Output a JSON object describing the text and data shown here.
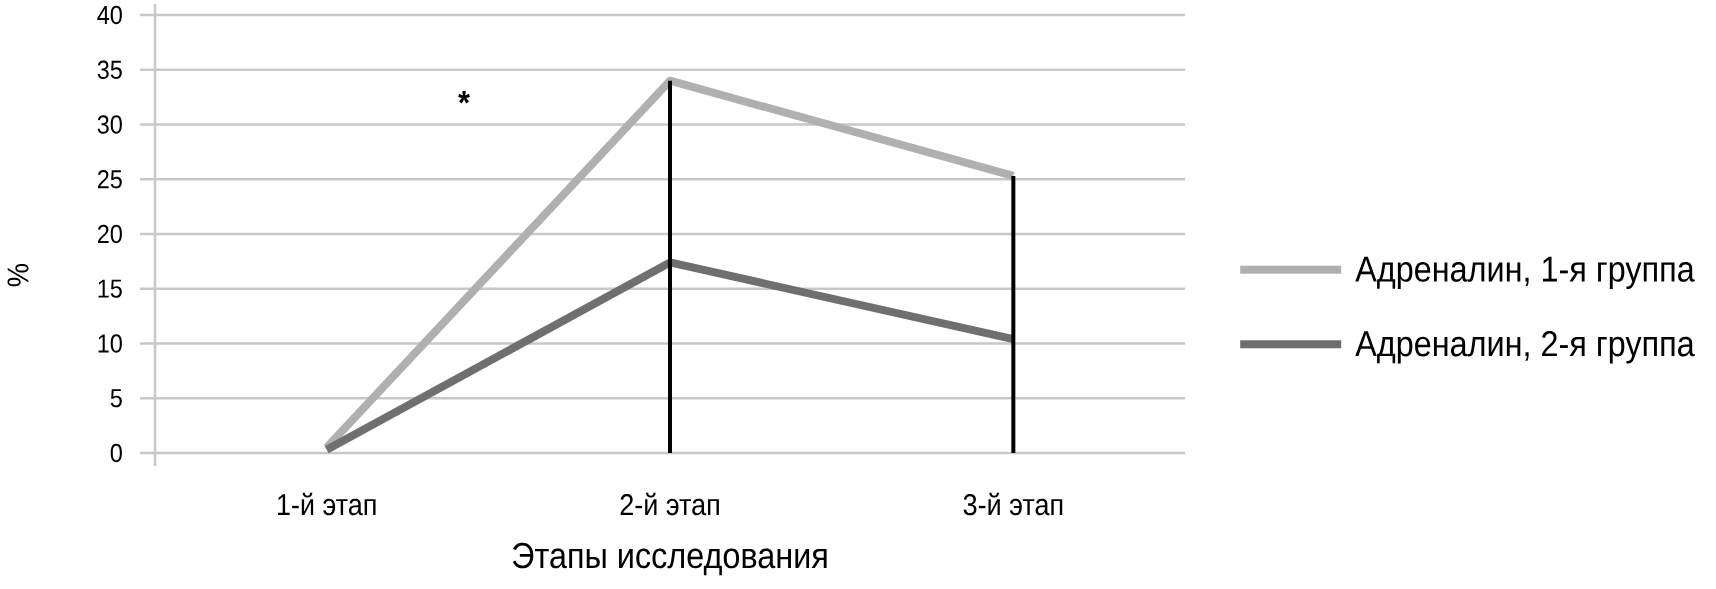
{
  "chart_data": {
    "type": "line",
    "xlabel": "Этапы исследования",
    "ylabel": "%",
    "categories": [
      "1-й этап",
      "2-й этап",
      "3-й этап"
    ],
    "series": [
      {
        "name": "Адреналин, 1-я группа",
        "color": "#b0b0b0",
        "values": [
          0.5,
          34,
          25.3
        ]
      },
      {
        "name": "Адреналин, 2-я группа",
        "color": "#6f6f6f",
        "values": [
          0.3,
          17.4,
          10.4
        ]
      },
      {
        "color": "#000000",
        "x": [
          "2-й этап",
          "2-й этап"
        ],
        "values": [
          0,
          34
        ]
      },
      {
        "color": "#000000",
        "x": [
          "3-й этап",
          "3-й этап"
        ],
        "values": [
          0,
          25.3
        ]
      }
    ],
    "ylim": [
      0,
      40
    ],
    "yticks": [
      0,
      5,
      10,
      15,
      20,
      25,
      30,
      35,
      40
    ],
    "grid": "y",
    "legend": "right",
    "marker": "none",
    "line_style": "solid",
    "annotations": [
      "*"
    ]
  }
}
